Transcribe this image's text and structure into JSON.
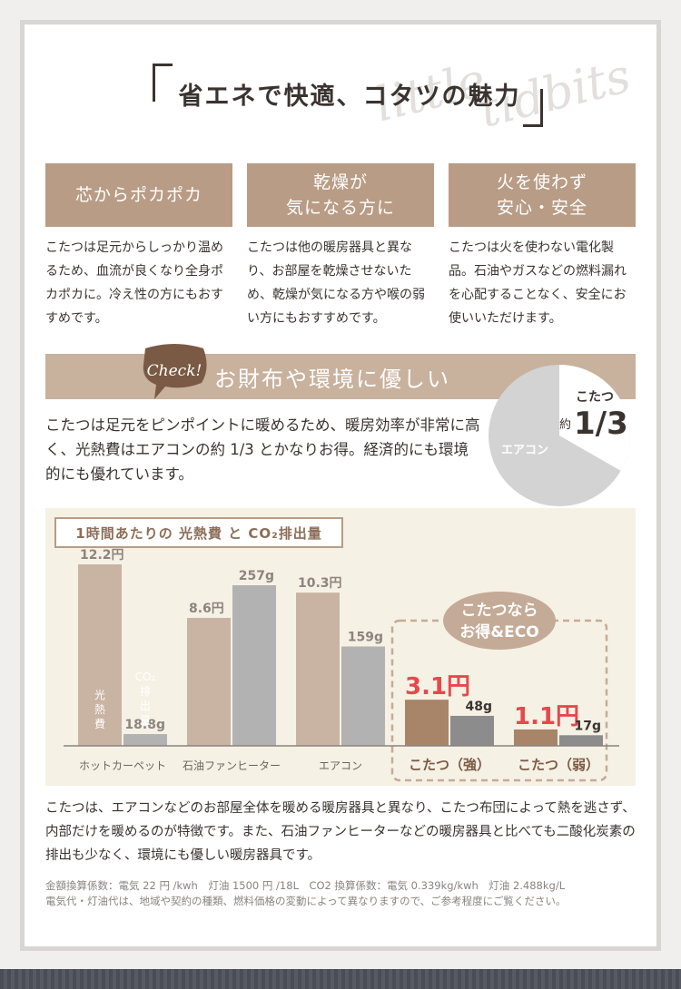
{
  "watermark": "little tidbits",
  "title": "省エネで快適、コタツの魅力",
  "features": [
    {
      "heading": "芯からポカポカ",
      "body": "こたつは足元からしっかり温めるため、血流が良くなり全身ポカポカに。冷え性の方にもおすすめです。"
    },
    {
      "heading": "乾燥が\n気になる方に",
      "body": "こたつは他の暖房器具と異なり、お部屋を乾燥させないため、乾燥が気になる方や喉の弱い方にもおすすめです。"
    },
    {
      "heading": "火を使わず\n安心・安全",
      "body": "こたつは火を使わない電化製品。石油やガスなどの燃料漏れを心配することなく、安全にお使いいただけます。"
    }
  ],
  "check": {
    "badge": "Check!",
    "title": "お財布や環境に優しい",
    "text": "こたつは足元をピンポイントに暖めるため、暖房効率が非常に高く、光熱費はエアコンの約 1/3 とかなりお得。経済的にも環境的にも優れています。"
  },
  "pie": {
    "kotatsu_label": "こたつ",
    "approx": "約",
    "fraction": "1/3",
    "aircon_label": "エアコン",
    "kotatsu_share": 0.333
  },
  "chart_data": {
    "type": "bar",
    "title": "1時間あたりの 光熱費 と CO₂排出量",
    "categories": [
      "ホットカーペット",
      "石油ファンヒーター",
      "エアコン",
      "こたつ（強）",
      "こたつ（弱）"
    ],
    "series": [
      {
        "name": "光熱費",
        "unit": "円",
        "values": [
          12.2,
          8.6,
          10.3,
          3.1,
          1.1
        ]
      },
      {
        "name": "CO₂排出量",
        "unit": "g",
        "values": [
          18.8,
          257,
          159,
          48,
          17
        ]
      }
    ],
    "value_labels_cost": [
      "12.2円",
      "8.6円",
      "10.3円",
      "3.1円",
      "1.1円"
    ],
    "value_labels_co2": [
      "18.8g",
      "257g",
      "159g",
      "48g",
      "17g"
    ],
    "bar_label_cost": "光熱費",
    "bar_label_co2": "CO₂排出量",
    "callout_line1": "こたつなら",
    "callout_line2": "お得&ECO"
  },
  "description": "こたつは、エアコンなどのお部屋全体を暖める暖房器具と異なり、こたつ布団によって熱を逃さず、内部だけを暖めるのが特徴です。また、石油ファンヒーターなどの暖房器具と比べても二酸化炭素の排出も少なく、環境にも優しい暖房器具です。",
  "notes": [
    "金額換算係数：電気 22 円 /kwh　灯油 1500 円 /18L　CO2 換算係数：電気 0.339kg/kwh　灯油 2.488kg/L",
    "電気代・灯油代は、地域や契約の種類、燃料価格の変動によって異なりますので、ご参考程度にご覧ください。"
  ],
  "colors": {
    "cost_bar": "#c9b3a3",
    "co2_bar": "#b2b2b2",
    "kotatsu_cost": "#a88468",
    "kotatsu_co2": "#8c8c8c",
    "accent_red": "#e8474b"
  }
}
